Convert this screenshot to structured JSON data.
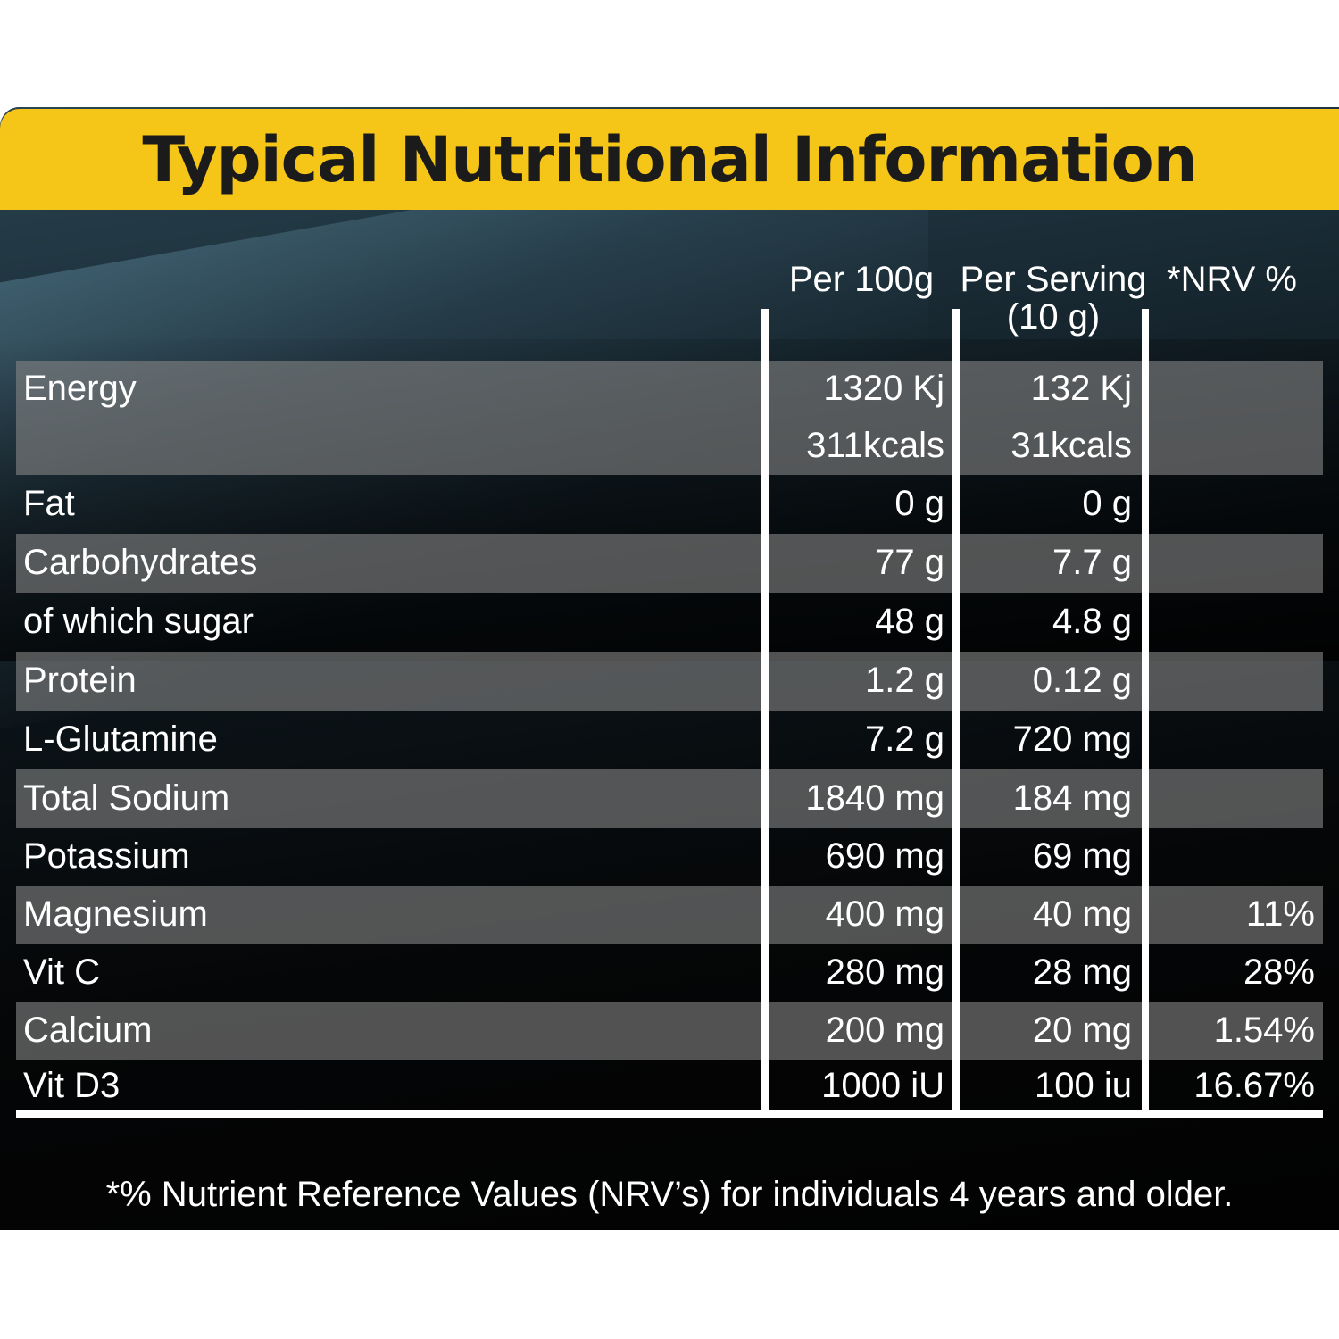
{
  "title": "Typical Nutritional Information",
  "headers": {
    "per100": "Per 100g",
    "serving_line1": "Per Serving",
    "serving_line2": "(10 g)",
    "nrv": "*NRV %"
  },
  "rows": [
    {
      "label": "Energy",
      "per100": "1320 Kj",
      "serving": "132 Kj",
      "nrv": "",
      "band": true
    },
    {
      "label": "",
      "per100": "311kcals",
      "serving": "31kcals",
      "nrv": "",
      "band": true
    },
    {
      "label": "Fat",
      "per100": "0 g",
      "serving": "0 g",
      "nrv": "",
      "band": false
    },
    {
      "label": "Carbohydrates",
      "per100": "77 g",
      "serving": "7.7 g",
      "nrv": "",
      "band": true
    },
    {
      "label": "of which sugar",
      "per100": "48 g",
      "serving": "4.8 g",
      "nrv": "",
      "band": false
    },
    {
      "label": "Protein",
      "per100": "1.2 g",
      "serving": "0.12 g",
      "nrv": "",
      "band": true
    },
    {
      "label": "L-Glutamine",
      "per100": "7.2 g",
      "serving": "720 mg",
      "nrv": "",
      "band": false
    },
    {
      "label": "Total Sodium",
      "per100": "1840 mg",
      "serving": "184 mg",
      "nrv": "",
      "band": true
    },
    {
      "label": "Potassium",
      "per100": "690 mg",
      "serving": "69 mg",
      "nrv": "",
      "band": false
    },
    {
      "label": "Magnesium",
      "per100": "400 mg",
      "serving": "40 mg",
      "nrv": "11%",
      "band": true
    },
    {
      "label": "Vit C",
      "per100": "280 mg",
      "serving": "28 mg",
      "nrv": "28%",
      "band": false
    },
    {
      "label": "Calcium",
      "per100": "200 mg",
      "serving": "20 mg",
      "nrv": "1.54%",
      "band": true
    },
    {
      "label": "Vit D3",
      "per100": "1000 iU",
      "serving": "100 iu",
      "nrv": "16.67%",
      "band": false
    }
  ],
  "footnote": "*% Nutrient Reference Values (NRV’s) for individuals 4 years and older."
}
